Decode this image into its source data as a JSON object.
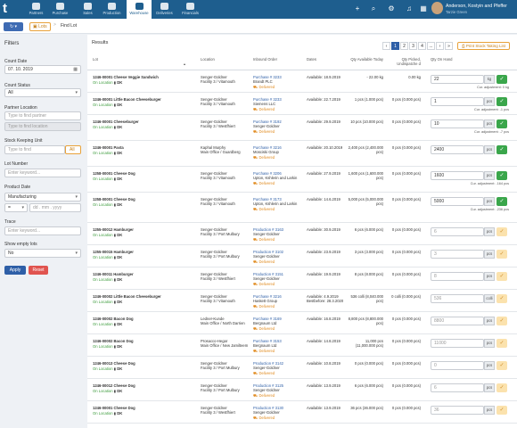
{
  "nav": {
    "logo": "t",
    "items": [
      {
        "label": "Partners"
      },
      {
        "label": "Purchase"
      },
      {
        "label": "Sales"
      },
      {
        "label": "Production"
      },
      {
        "label": "Warehouse"
      },
      {
        "label": "Deliveries"
      },
      {
        "label": "Financials"
      }
    ],
    "user": {
      "name": "Anderson, Kostyin and Pfeffer",
      "role": "Tarzie Green"
    }
  },
  "toolbar": {
    "history_label": "↻ ▾",
    "lots_button": "Lots",
    "breadcrumb_separator": ">",
    "breadcrumb": "Find Lot"
  },
  "filters": {
    "title": "Filters",
    "count_date": {
      "label": "Count Date",
      "value": "07. 10. 2019"
    },
    "count_status": {
      "label": "Count Status",
      "value": "All"
    },
    "partner_location": {
      "label": "Partner Location",
      "placeholder1": "Type to find partner",
      "placeholder2": "Type to find location"
    },
    "sku": {
      "label": "Stock Keeping Unit",
      "placeholder": "Type to find",
      "button": "All"
    },
    "lot_number": {
      "label": "Lot Number",
      "placeholder": "Enter keyword..."
    },
    "product_date": {
      "label": "Product Date",
      "value": "Manufacturing",
      "op": "=",
      "date_placeholder": "dd . mm . yyyy"
    },
    "trace": {
      "label": "Trace",
      "placeholder": "Enter keyword..."
    },
    "show_empty": {
      "label": "Show empty lots",
      "value": "No"
    },
    "apply_label": "Apply",
    "reset_label": "Reset"
  },
  "results": {
    "title": "Results",
    "pagination": {
      "pages": [
        "‹",
        "1",
        "2",
        "3",
        "4",
        "...",
        "›",
        "»"
      ],
      "active": "1"
    },
    "print_label": "Print Stock Taking List",
    "columns": [
      "Lot",
      "Location",
      "Inbound Order",
      "Dates",
      "Qty Available Today",
      "Qty Picked, Undispatche d",
      "Qty On Hand"
    ]
  },
  "rows": [
    {
      "lot": "1246-00001 Cheese Veggie Sandwich",
      "link": "On Location",
      "tag": "DK",
      "loc1": "Senger-Goldner",
      "loc2": "Facility 3 / Vitamouth",
      "order": "Purchase # 3233",
      "order2": "Brandt PLC",
      "status": "Delivered",
      "date": "Available: 18.9.2019",
      "avail": "- 22.00 kg",
      "picked": "0.00 kg",
      "qty": "22",
      "unit": "kg",
      "check": "green",
      "adj": "Cur. adjustment: 0 kg"
    },
    {
      "lot": "1246-00001 Little Bacon Cheeseburger",
      "link": "On Location",
      "tag": "DK",
      "loc1": "Senger-Goldner",
      "loc2": "Facility 3 / Vitamouth",
      "order": "Purchase # 3233",
      "order2": "Siemens LLC",
      "status": "Delivered",
      "date": "Available: 22.7.2019",
      "avail": "1 pcs (1.000 pcs)",
      "picked": "0 pcs (0.000 pcs)",
      "qty": "1",
      "unit": "pcs",
      "check": "green",
      "adj": "Cur. adjustment: -1 pcs"
    },
    {
      "lot": "1246-00001 Cheeseburger",
      "link": "On Location",
      "tag": "DK",
      "loc1": "Senger-Goldner",
      "loc2": "Facility 3 / Westfhiert",
      "order": "Purchase # 3192",
      "order2": "Senger-Goldner",
      "status": "Delivered",
      "date": "Available: 29.9.2019",
      "avail": "10 pcs (10.000 pcs)",
      "picked": "0 pcs (0.000 pcs)",
      "qty": "10",
      "unit": "pcs",
      "check": "green",
      "adj": "Cur. adjustment: -7 pcs"
    },
    {
      "lot": "1246-00001 Pasta",
      "link": "On Location",
      "tag": "DK",
      "loc1": "Kaphal Murphy",
      "loc2": "Main Office / Guardberg",
      "order": "Purchase # 3216",
      "order2": "Mosciski Group",
      "status": "Delivered",
      "date": "Available: 20.10.2019",
      "avail": "2,400 pcs (2,400.000 pcs)",
      "picked": "0 pcs (0.000 pcs)",
      "qty": "2400",
      "unit": "pcs",
      "check": "green",
      "adj": ""
    },
    {
      "lot": "1258-00001 Cheese Dog",
      "link": "On Location",
      "tag": "DK",
      "loc1": "Senger-Goldner",
      "loc2": "Facility 3 / Vitamouth",
      "order": "Purchase # 3206",
      "order2": "Upton, Kshlerin and Larkin",
      "status": "Delivered",
      "date": "Available: 27.9.2019",
      "avail": "1,600 pcs (1,600.000 pcs)",
      "picked": "0 pcs (0.000 pcs)",
      "qty": "1600",
      "unit": "pcs",
      "check": "green",
      "adj": "Cur. adjustment: -164 pcs"
    },
    {
      "lot": "1258-00001 Cheese Dog",
      "link": "On Location",
      "tag": "DK",
      "loc1": "Senger-Goldner",
      "loc2": "Facility 3 / Vitamouth",
      "order": "Purchase # 3173",
      "order2": "Upton, Kshlerin and Larkin",
      "status": "Delivered",
      "date": "Available: 14.6.2019",
      "avail": "5,000 pcs (5,000.000 pcs)",
      "picked": "0 pcs (0.000 pcs)",
      "qty": "5000",
      "unit": "pcs",
      "check": "green",
      "adj": "Cur. adjustment: -236 pcs"
    },
    {
      "lot": "1255-00012 Hamburger",
      "link": "On Location",
      "tag": "DK",
      "loc1": "Senger-Goldner",
      "loc2": "Facility 3 / Port Mulbury",
      "order": "Production # 3163",
      "order2": "Senger-Goldner",
      "status": "Delivered",
      "date": "Available: 30.9.2019",
      "avail": "6 pcs (6.000 pcs)",
      "picked": "0 pcs (0.000 pcs)",
      "qty": "6",
      "unit": "pcs",
      "check": "yellow",
      "adj": ""
    },
    {
      "lot": "1255-00015 Hamburger",
      "link": "On Location",
      "tag": "DK",
      "loc1": "Senger-Goldner",
      "loc2": "Facility 3 / Port Mulbury",
      "order": "Production # 3102",
      "order2": "Senger-Goldner",
      "status": "Delivered",
      "date": "Available: 23.9.2019",
      "avail": "3 pcs (3.000 pcs)",
      "picked": "0 pcs (0.000 pcs)",
      "qty": "3",
      "unit": "pcs",
      "check": "yellow",
      "adj": ""
    },
    {
      "lot": "1246-00011 Hamburger",
      "link": "On Location",
      "tag": "DK",
      "loc1": "Senger-Goldner",
      "loc2": "Facility 3 / Westfhiert",
      "order": "Production # 3151",
      "order2": "Senger-Goldner",
      "status": "Delivered",
      "date": "Available: 19.9.2019",
      "avail": "8 pcs (8.000 pcs)",
      "picked": "0 pcs (0.000 pcs)",
      "qty": "8",
      "unit": "pcs",
      "check": "yellow",
      "adj": ""
    },
    {
      "lot": "1246-00002 Little Bacon Cheeseburger",
      "link": "On Location",
      "tag": "DK",
      "loc1": "Senger-Goldner",
      "loc2": "Facility 3 / Vitamouth",
      "order": "Purchase # 3216",
      "order2": "Haskett Group",
      "status": "Delivered",
      "date": "Available: 4.9.2019",
      "date2": "Bestbefore: 28.3.2020",
      "avail": "536 colli (8,040.000 pcs)",
      "picked": "0 colli (0.000 pcs)",
      "qty": "536",
      "unit": "colli",
      "check": "yellow",
      "adj": ""
    },
    {
      "lot": "1246-00002 Bacon Dog",
      "link": "On Location",
      "tag": "DK",
      "loc1": "Ledner-Kunde",
      "loc2": "Main Office / North Darrien",
      "order": "Purchase # 3169",
      "order2": "Bergnaum Ltd",
      "status": "Delivered",
      "date": "Available: 16.8.2019",
      "avail": "8,800 pcs (8,800.000 pcs)",
      "picked": "0 pcs (0.000 pcs)",
      "qty": "8800",
      "unit": "pcs",
      "check": "yellow",
      "adj": ""
    },
    {
      "lot": "1246-00002 Bacon Dog",
      "link": "On Location",
      "tag": "DK",
      "loc1": "Prosacco-Hegar",
      "loc2": "Main Office / New Jamilteem",
      "order": "Purchase # 3153",
      "order2": "Bergnaum Ltd",
      "status": "Delivered",
      "date": "Available: 14.8.2019",
      "avail": "11,000 pcs (11,000.000 pcs)",
      "picked": "0 pcs (0.000 pcs)",
      "qty": "11000",
      "unit": "pcs",
      "check": "yellow",
      "adj": ""
    },
    {
      "lot": "1246-00013 Cheese Dog",
      "link": "On Location",
      "tag": "DK",
      "loc1": "Senger-Goldner",
      "loc2": "Facility 3 / Port Mulbury",
      "order": "Production # 3142",
      "order2": "Senger-Goldner",
      "status": "Delivered",
      "date": "Available: 10.8.2019",
      "avail": "0 pcs (0.000 pcs)",
      "picked": "0 pcs (0.000 pcs)",
      "qty": "0",
      "unit": "pcs",
      "check": "yellow",
      "adj": ""
    },
    {
      "lot": "1246-00012 Cheese Dog",
      "link": "On Location",
      "tag": "DK",
      "loc1": "Senger-Goldner",
      "loc2": "Facility 3 / Port Mulbury",
      "order": "Production # 3125",
      "order2": "Senger-Goldner",
      "status": "Delivered",
      "date": "Available: 13.9.2019",
      "avail": "6 pcs (6.000 pcs)",
      "picked": "0 pcs (0.000 pcs)",
      "qty": "6",
      "unit": "pcs",
      "check": "yellow",
      "adj": ""
    },
    {
      "lot": "1246-00001 Cheese Dog",
      "link": "On Location",
      "tag": "DK",
      "loc1": "Senger-Goldner",
      "loc2": "Facility 3 / Westfhiert",
      "order": "Production # 3130",
      "order2": "Senger-Goldner",
      "status": "Delivered",
      "date": "Available: 13.9.2019",
      "avail": "36 pcs (36.000 pcs)",
      "picked": "0 pcs (0.000 pcs)",
      "qty": "36",
      "unit": "pcs",
      "check": "yellow",
      "adj": ""
    }
  ]
}
